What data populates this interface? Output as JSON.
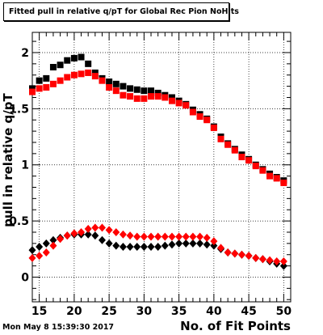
{
  "title": "Fitted pull in relative q/pT  for Global Rec Pion NoHits",
  "timestamp": "Mon May  8 15:39:30 2017",
  "colors": {
    "series1": "#000000",
    "series2": "#ff0000",
    "series3": "#000000",
    "series4": "#ff0000"
  },
  "chart_data": {
    "type": "scatter",
    "xlabel": "No. of Fit Points",
    "ylabel": "pull in relative q/pT",
    "xlim": [
      14,
      51
    ],
    "ylim": [
      -0.22,
      2.18
    ],
    "xticks": [
      15,
      20,
      25,
      30,
      35,
      40,
      45,
      50
    ],
    "xtick_labels": [
      "15",
      "20",
      "25",
      "30",
      "35",
      "40",
      "45",
      "50"
    ],
    "yticks": [
      0,
      0.5,
      1,
      1.5,
      2
    ],
    "ytick_labels": [
      "0",
      "0.5",
      "1",
      "1.5",
      "2"
    ],
    "grid": true,
    "series": [
      {
        "marker": "square",
        "color": "#000000",
        "x": [
          14,
          15,
          16,
          17,
          18,
          19,
          20,
          21,
          22,
          23,
          24,
          25,
          26,
          27,
          28,
          29,
          30,
          31,
          32,
          33,
          34,
          35,
          36,
          37,
          38,
          39,
          40,
          41,
          42,
          43,
          44,
          45,
          46,
          47,
          48,
          49,
          50
        ],
        "y": [
          1.68,
          1.75,
          1.77,
          1.87,
          1.89,
          1.93,
          1.95,
          1.96,
          1.9,
          1.82,
          1.77,
          1.74,
          1.72,
          1.7,
          1.68,
          1.67,
          1.66,
          1.66,
          1.64,
          1.62,
          1.6,
          1.57,
          1.54,
          1.49,
          1.45,
          1.41,
          1.34,
          1.25,
          1.19,
          1.14,
          1.09,
          1.05,
          1.0,
          0.96,
          0.92,
          0.89,
          0.86
        ]
      },
      {
        "marker": "square",
        "color": "#ff0000",
        "x": [
          14,
          15,
          16,
          17,
          18,
          19,
          20,
          21,
          22,
          23,
          24,
          25,
          26,
          27,
          28,
          29,
          30,
          31,
          32,
          33,
          34,
          35,
          36,
          37,
          38,
          39,
          40,
          41,
          42,
          43,
          44,
          45,
          46,
          47,
          48,
          49,
          50
        ],
        "y": [
          1.65,
          1.68,
          1.69,
          1.72,
          1.75,
          1.78,
          1.8,
          1.81,
          1.82,
          1.79,
          1.75,
          1.69,
          1.66,
          1.62,
          1.61,
          1.59,
          1.59,
          1.61,
          1.61,
          1.6,
          1.57,
          1.55,
          1.53,
          1.47,
          1.43,
          1.4,
          1.33,
          1.23,
          1.18,
          1.13,
          1.07,
          1.04,
          0.99,
          0.95,
          0.9,
          0.88,
          0.84
        ]
      },
      {
        "marker": "diamond",
        "color": "#000000",
        "x": [
          14,
          15,
          16,
          17,
          18,
          19,
          20,
          21,
          22,
          23,
          24,
          25,
          26,
          27,
          28,
          29,
          30,
          31,
          32,
          33,
          34,
          35,
          36,
          37,
          38,
          39,
          40,
          41,
          42,
          43,
          44,
          45,
          46,
          47,
          48,
          49,
          50
        ],
        "y": [
          0.24,
          0.27,
          0.3,
          0.33,
          0.35,
          0.37,
          0.38,
          0.38,
          0.38,
          0.37,
          0.33,
          0.3,
          0.28,
          0.27,
          0.27,
          0.27,
          0.27,
          0.27,
          0.27,
          0.28,
          0.29,
          0.3,
          0.3,
          0.3,
          0.3,
          0.29,
          0.28,
          0.25,
          0.22,
          0.21,
          0.2,
          0.19,
          0.17,
          0.16,
          0.14,
          0.12,
          0.1
        ]
      },
      {
        "marker": "diamond",
        "color": "#ff0000",
        "x": [
          14,
          15,
          16,
          17,
          18,
          19,
          20,
          21,
          22,
          23,
          24,
          25,
          26,
          27,
          28,
          29,
          30,
          31,
          32,
          33,
          34,
          35,
          36,
          37,
          38,
          39,
          40,
          41,
          42,
          43,
          44,
          45,
          46,
          47,
          48,
          49,
          50
        ],
        "y": [
          0.17,
          0.19,
          0.22,
          0.28,
          0.34,
          0.37,
          0.39,
          0.4,
          0.43,
          0.44,
          0.44,
          0.42,
          0.4,
          0.38,
          0.37,
          0.36,
          0.36,
          0.36,
          0.36,
          0.36,
          0.36,
          0.36,
          0.36,
          0.36,
          0.36,
          0.35,
          0.32,
          0.26,
          0.22,
          0.21,
          0.2,
          0.19,
          0.17,
          0.16,
          0.15,
          0.14,
          0.14
        ]
      }
    ]
  }
}
